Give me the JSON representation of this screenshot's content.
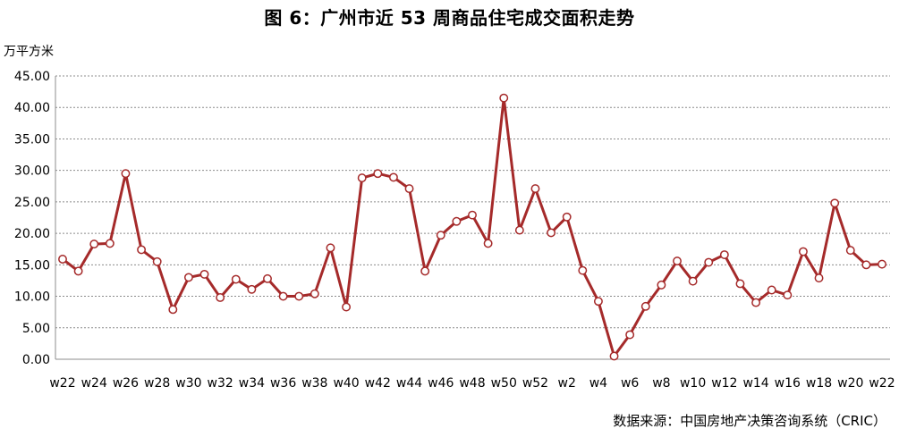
{
  "page": {
    "title": "图 6：广州市近 53 周商品住宅成交面积走势",
    "source": "数据来源：中国房地产决策咨询系统（CRIC）"
  },
  "chart_data": {
    "type": "line",
    "title": "图 6：广州市近 53 周商品住宅成交面积走势",
    "ylabel": "万平方米",
    "xlabel": "",
    "ylim": [
      0,
      45
    ],
    "yticks": [
      "0.00",
      "5.00",
      "10.00",
      "15.00",
      "20.00",
      "25.00",
      "30.00",
      "35.00",
      "40.00",
      "45.00"
    ],
    "grid": true,
    "legend": "none",
    "color": "#a52a2a",
    "categories": [
      "w22",
      "w23",
      "w24",
      "w25",
      "w26",
      "w27",
      "w28",
      "w29",
      "w30",
      "w31",
      "w32",
      "w33",
      "w34",
      "w35",
      "w36",
      "w37",
      "w38",
      "w39",
      "w40",
      "w41",
      "w42",
      "w43",
      "w44",
      "w45",
      "w46",
      "w47",
      "w48",
      "w49",
      "w50",
      "w51",
      "w52",
      "w1",
      "w2",
      "w3",
      "w4",
      "w5",
      "w6",
      "w7",
      "w8",
      "w9",
      "w10",
      "w11",
      "w12",
      "w13",
      "w14",
      "w15",
      "w16",
      "w17",
      "w18",
      "w19",
      "w20",
      "w21",
      "w22"
    ],
    "x_tick_labels": [
      "w22",
      "w24",
      "w26",
      "w28",
      "w30",
      "w32",
      "w34",
      "w36",
      "w38",
      "w40",
      "w42",
      "w44",
      "w46",
      "w48",
      "w50",
      "w52",
      "w2",
      "w4",
      "w6",
      "w8",
      "w10",
      "w12",
      "w14",
      "w16",
      "w18",
      "w20",
      "w22"
    ],
    "values": [
      15.9,
      14.0,
      18.3,
      18.4,
      29.5,
      17.4,
      15.5,
      7.9,
      13.0,
      13.5,
      9.8,
      12.7,
      11.1,
      12.8,
      10.0,
      10.0,
      10.4,
      17.7,
      8.3,
      28.8,
      29.5,
      28.9,
      27.1,
      14.0,
      19.7,
      21.9,
      22.9,
      18.4,
      41.5,
      20.5,
      27.1,
      20.1,
      22.6,
      14.1,
      9.2,
      0.5,
      3.9,
      8.4,
      11.8,
      15.6,
      12.4,
      15.4,
      16.6,
      12.0,
      9.0,
      11.0,
      10.2,
      17.1,
      12.9,
      24.8,
      17.3,
      15.0,
      15.1
    ]
  }
}
